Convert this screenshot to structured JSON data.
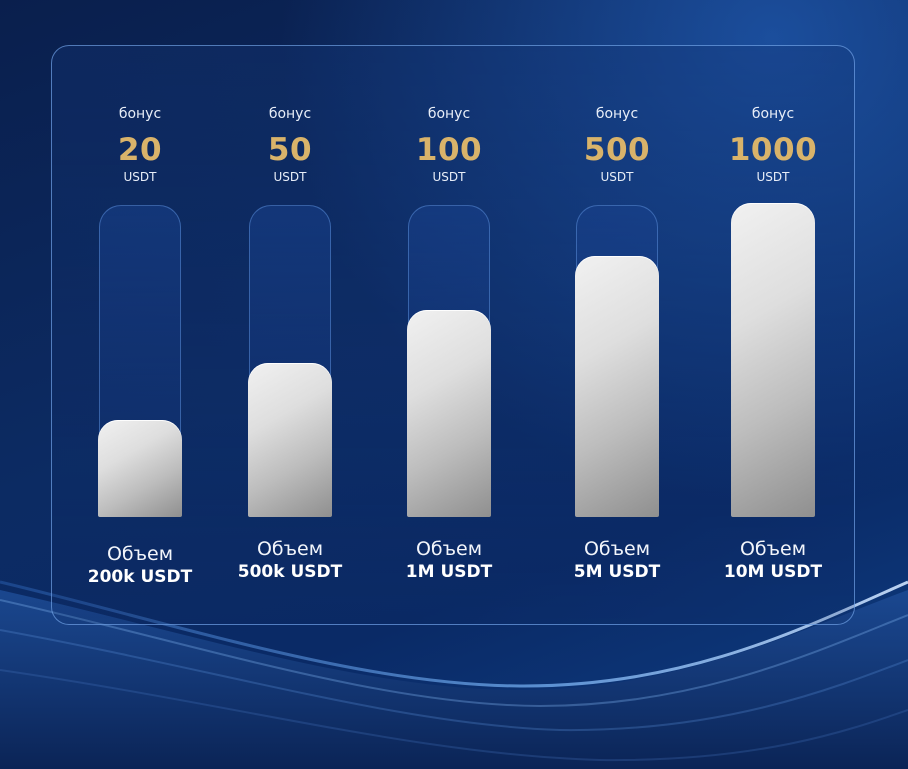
{
  "chart_data": {
    "type": "bar",
    "categories": [
      "200k USDT",
      "500k USDT",
      "1M USDT",
      "5M USDT",
      "10M USDT"
    ],
    "values": [
      20,
      50,
      100,
      500,
      1000
    ],
    "fill_fraction": [
      0.31,
      0.49,
      0.66,
      0.83,
      1.0
    ],
    "bonus_label": "бонус",
    "unit": "USDT",
    "volume_label": "Объем"
  },
  "colors": {
    "accent": "#d9b36a",
    "background": "#0c2b63",
    "bar": "#d6d6d6"
  }
}
